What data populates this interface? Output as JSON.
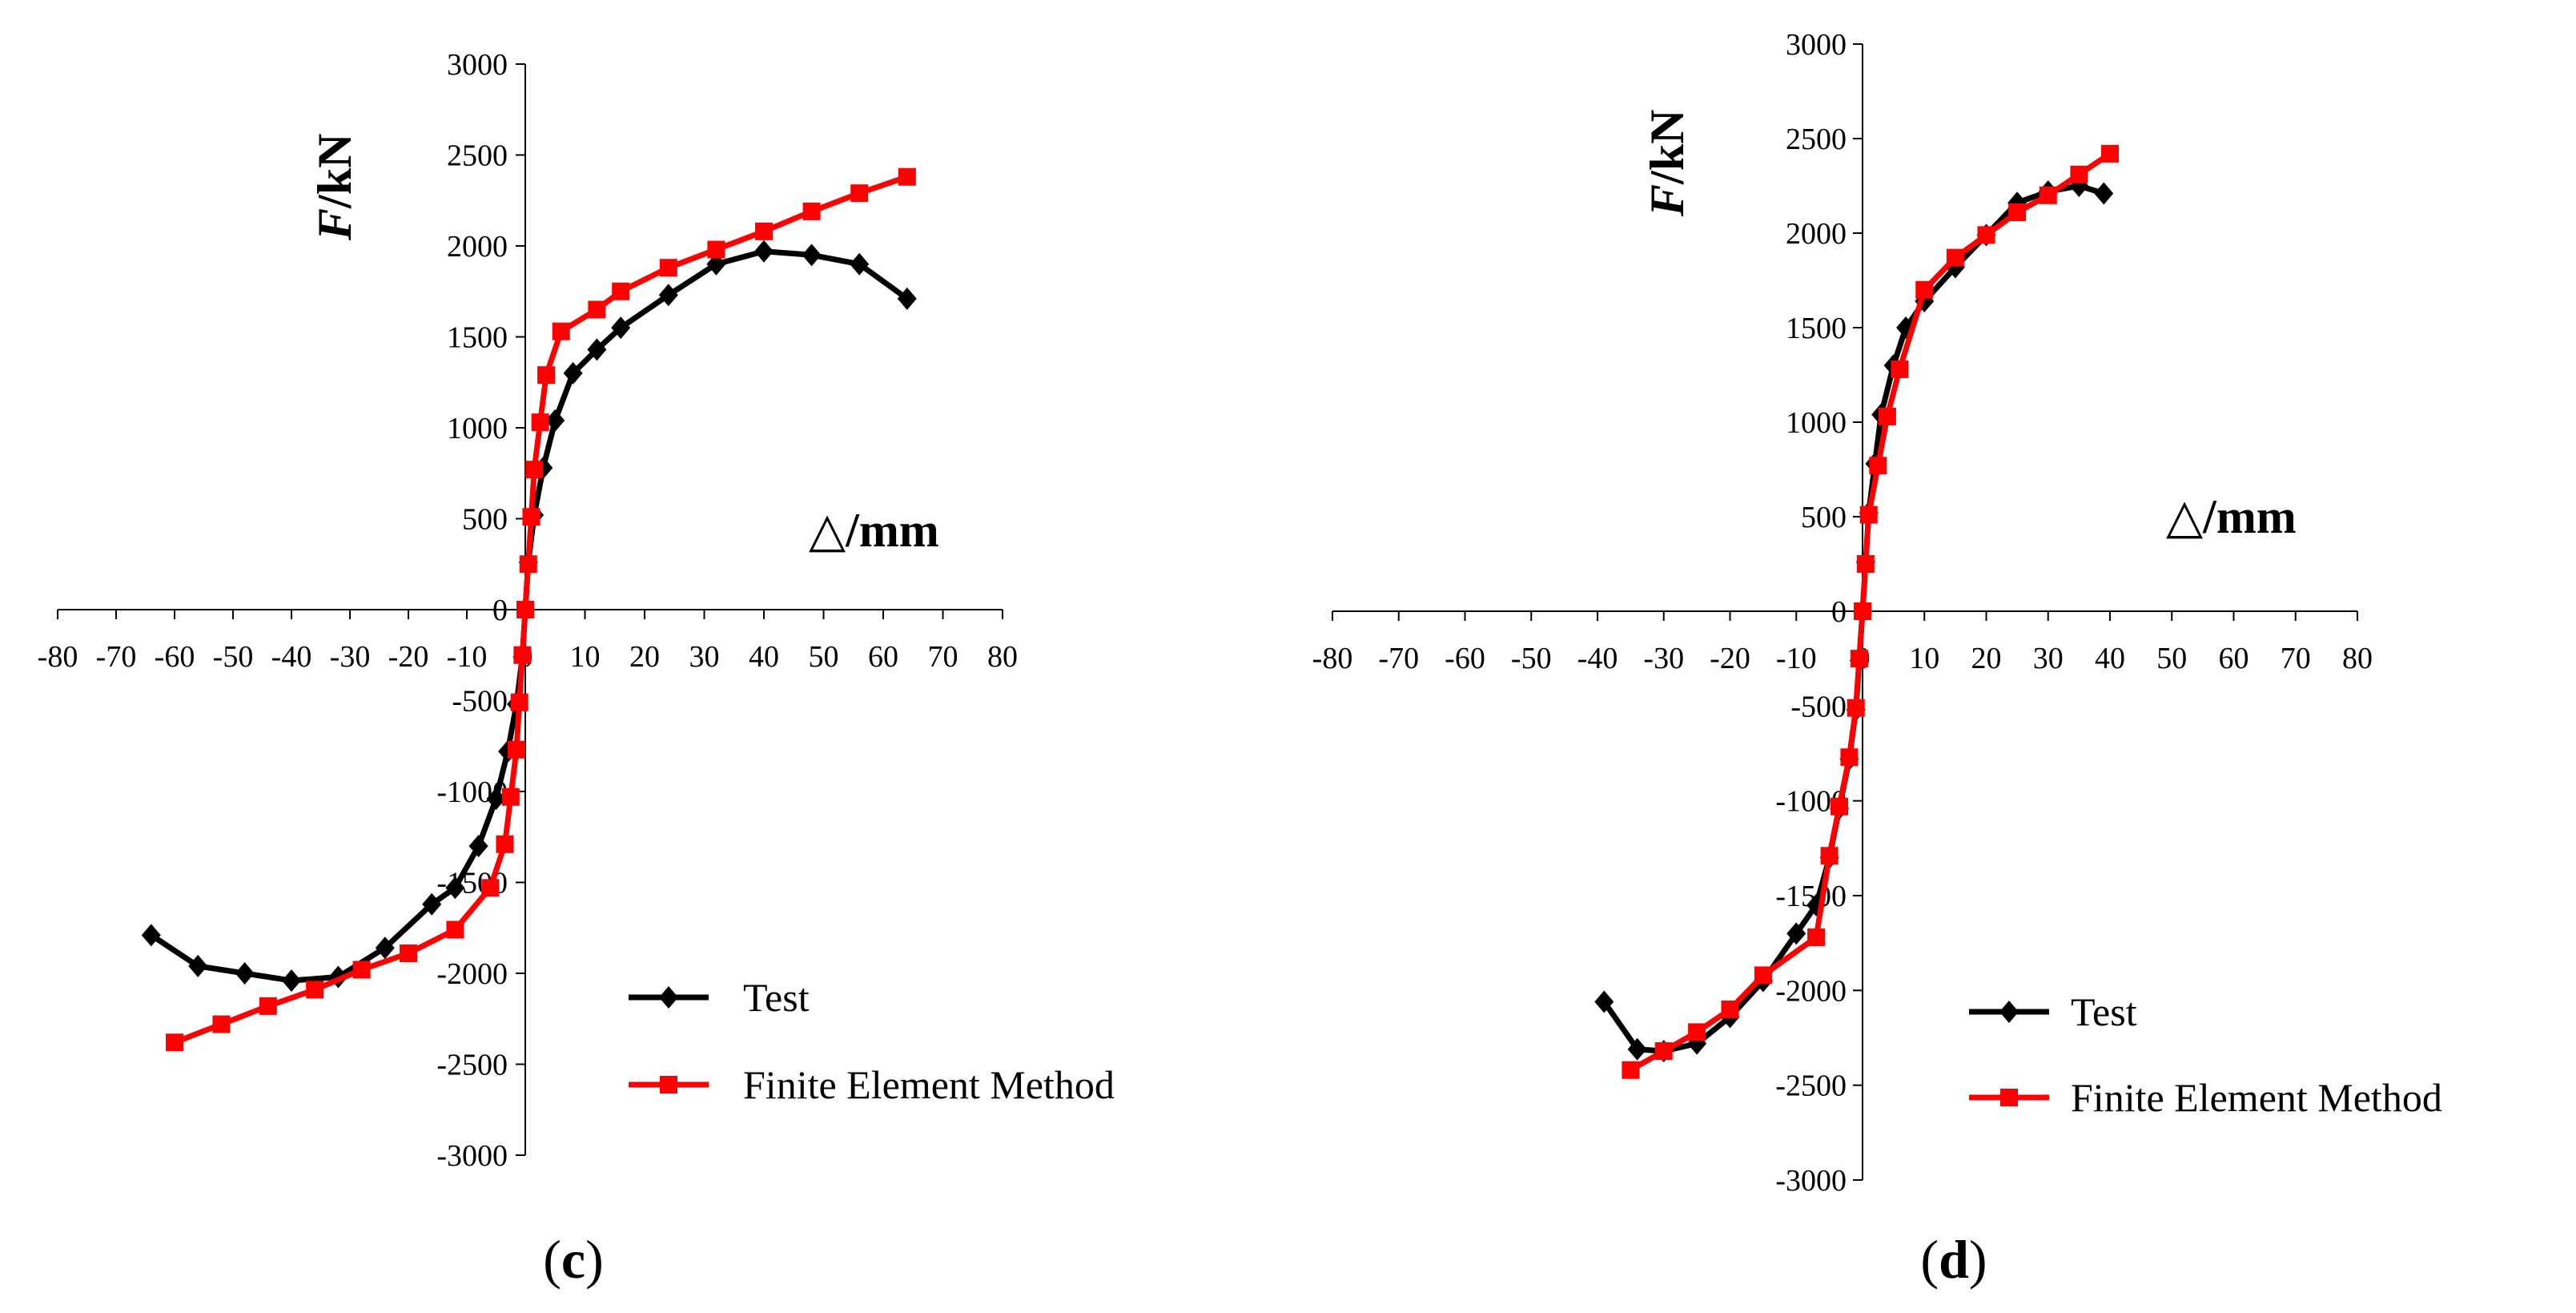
{
  "chart_data": [
    {
      "id": "c",
      "type": "line",
      "caption_letter": "c",
      "xlabel_symbol": "△",
      "xlabel_unit": "/mm",
      "ylabel_symbol": "F",
      "ylabel_unit": "/kN",
      "xlim": [
        -80,
        80
      ],
      "ylim": [
        -3000,
        3000
      ],
      "x_ticks": [
        -80,
        -70,
        -60,
        -50,
        -40,
        -30,
        -20,
        -10,
        0,
        10,
        20,
        30,
        40,
        50,
        60,
        70,
        80
      ],
      "y_ticks": [
        -3000,
        -2500,
        -2000,
        -1500,
        -1000,
        -500,
        0,
        500,
        1000,
        1500,
        2000,
        2500,
        3000
      ],
      "series": [
        {
          "name": "Test",
          "color": "#000000",
          "marker": "diamond",
          "points": [
            [
              -64,
              -1790
            ],
            [
              -56,
              -1960
            ],
            [
              -48,
              -2000
            ],
            [
              -40,
              -2040
            ],
            [
              -32,
              -2020
            ],
            [
              -24,
              -1860
            ],
            [
              -16,
              -1620
            ],
            [
              -12,
              -1530
            ],
            [
              -8,
              -1300
            ],
            [
              -5,
              -1040
            ],
            [
              -3,
              -780
            ],
            [
              -1.5,
              -520
            ],
            [
              -0.5,
              -260
            ],
            [
              0,
              0
            ],
            [
              0.5,
              260
            ],
            [
              1.5,
              520
            ],
            [
              3,
              780
            ],
            [
              5,
              1040
            ],
            [
              8,
              1300
            ],
            [
              12,
              1430
            ],
            [
              16,
              1550
            ],
            [
              24,
              1730
            ],
            [
              32,
              1900
            ],
            [
              40,
              1970
            ],
            [
              48,
              1950
            ],
            [
              56,
              1900
            ],
            [
              64,
              1710
            ]
          ]
        },
        {
          "name": "Finite Element Method",
          "color": "#ff0000",
          "marker": "square",
          "points": [
            [
              -60,
              -2380
            ],
            [
              -52,
              -2280
            ],
            [
              -44,
              -2180
            ],
            [
              -36,
              -2090
            ],
            [
              -28,
              -1980
            ],
            [
              -20,
              -1890
            ],
            [
              -12,
              -1760
            ],
            [
              -6,
              -1530
            ],
            [
              -3.5,
              -1290
            ],
            [
              -2.5,
              -1030
            ],
            [
              -1.5,
              -770
            ],
            [
              -1,
              -510
            ],
            [
              -0.5,
              -250
            ],
            [
              0,
              0
            ],
            [
              0.5,
              250
            ],
            [
              1,
              510
            ],
            [
              1.5,
              770
            ],
            [
              2.5,
              1030
            ],
            [
              3.5,
              1290
            ],
            [
              6,
              1530
            ],
            [
              12,
              1650
            ],
            [
              16,
              1750
            ],
            [
              24,
              1880
            ],
            [
              32,
              1980
            ],
            [
              40,
              2080
            ],
            [
              48,
              2190
            ],
            [
              56,
              2290
            ],
            [
              64,
              2380
            ]
          ]
        }
      ]
    },
    {
      "id": "d",
      "type": "line",
      "caption_letter": "d",
      "xlabel_symbol": "△",
      "xlabel_unit": "/mm",
      "ylabel_symbol": "F",
      "ylabel_unit": "/kN",
      "xlim": [
        -80,
        80
      ],
      "ylim": [
        -3000,
        3000
      ],
      "x_ticks": [
        -80,
        -70,
        -60,
        -50,
        -40,
        -30,
        -20,
        -10,
        0,
        10,
        20,
        30,
        40,
        50,
        60,
        70,
        80
      ],
      "y_ticks": [
        -3000,
        -2500,
        -2000,
        -1500,
        -1000,
        -500,
        0,
        500,
        1000,
        1500,
        2000,
        2500,
        3000
      ],
      "series": [
        {
          "name": "Test",
          "color": "#000000",
          "marker": "diamond",
          "points": [
            [
              -39,
              -2060
            ],
            [
              -34,
              -2310
            ],
            [
              -30,
              -2320
            ],
            [
              -25,
              -2280
            ],
            [
              -20,
              -2140
            ],
            [
              -15,
              -1950
            ],
            [
              -10,
              -1700
            ],
            [
              -7,
              -1550
            ],
            [
              -5,
              -1300
            ],
            [
              -3.5,
              -1040
            ],
            [
              -2,
              -780
            ],
            [
              -1,
              -520
            ],
            [
              -0.5,
              -260
            ],
            [
              0,
              0
            ],
            [
              0.5,
              260
            ],
            [
              1,
              520
            ],
            [
              2,
              780
            ],
            [
              3,
              1040
            ],
            [
              5,
              1300
            ],
            [
              7,
              1500
            ],
            [
              10,
              1640
            ],
            [
              15,
              1820
            ],
            [
              20,
              1990
            ],
            [
              25,
              2160
            ],
            [
              30,
              2220
            ],
            [
              35,
              2250
            ],
            [
              39,
              2210
            ]
          ]
        },
        {
          "name": "Finite Element Method",
          "color": "#ff0000",
          "marker": "square",
          "points": [
            [
              -35,
              -2420
            ],
            [
              -30,
              -2320
            ],
            [
              -25,
              -2220
            ],
            [
              -20,
              -2100
            ],
            [
              -15,
              -1920
            ],
            [
              -7,
              -1720
            ],
            [
              -5,
              -1290
            ],
            [
              -3.5,
              -1030
            ],
            [
              -2,
              -770
            ],
            [
              -1,
              -510
            ],
            [
              -0.5,
              -250
            ],
            [
              0,
              0
            ],
            [
              0.5,
              250
            ],
            [
              1,
              510
            ],
            [
              2.5,
              770
            ],
            [
              4,
              1030
            ],
            [
              6,
              1280
            ],
            [
              10,
              1700
            ],
            [
              15,
              1870
            ],
            [
              20,
              1990
            ],
            [
              25,
              2110
            ],
            [
              30,
              2200
            ],
            [
              35,
              2310
            ],
            [
              40,
              2420
            ]
          ]
        }
      ]
    }
  ]
}
